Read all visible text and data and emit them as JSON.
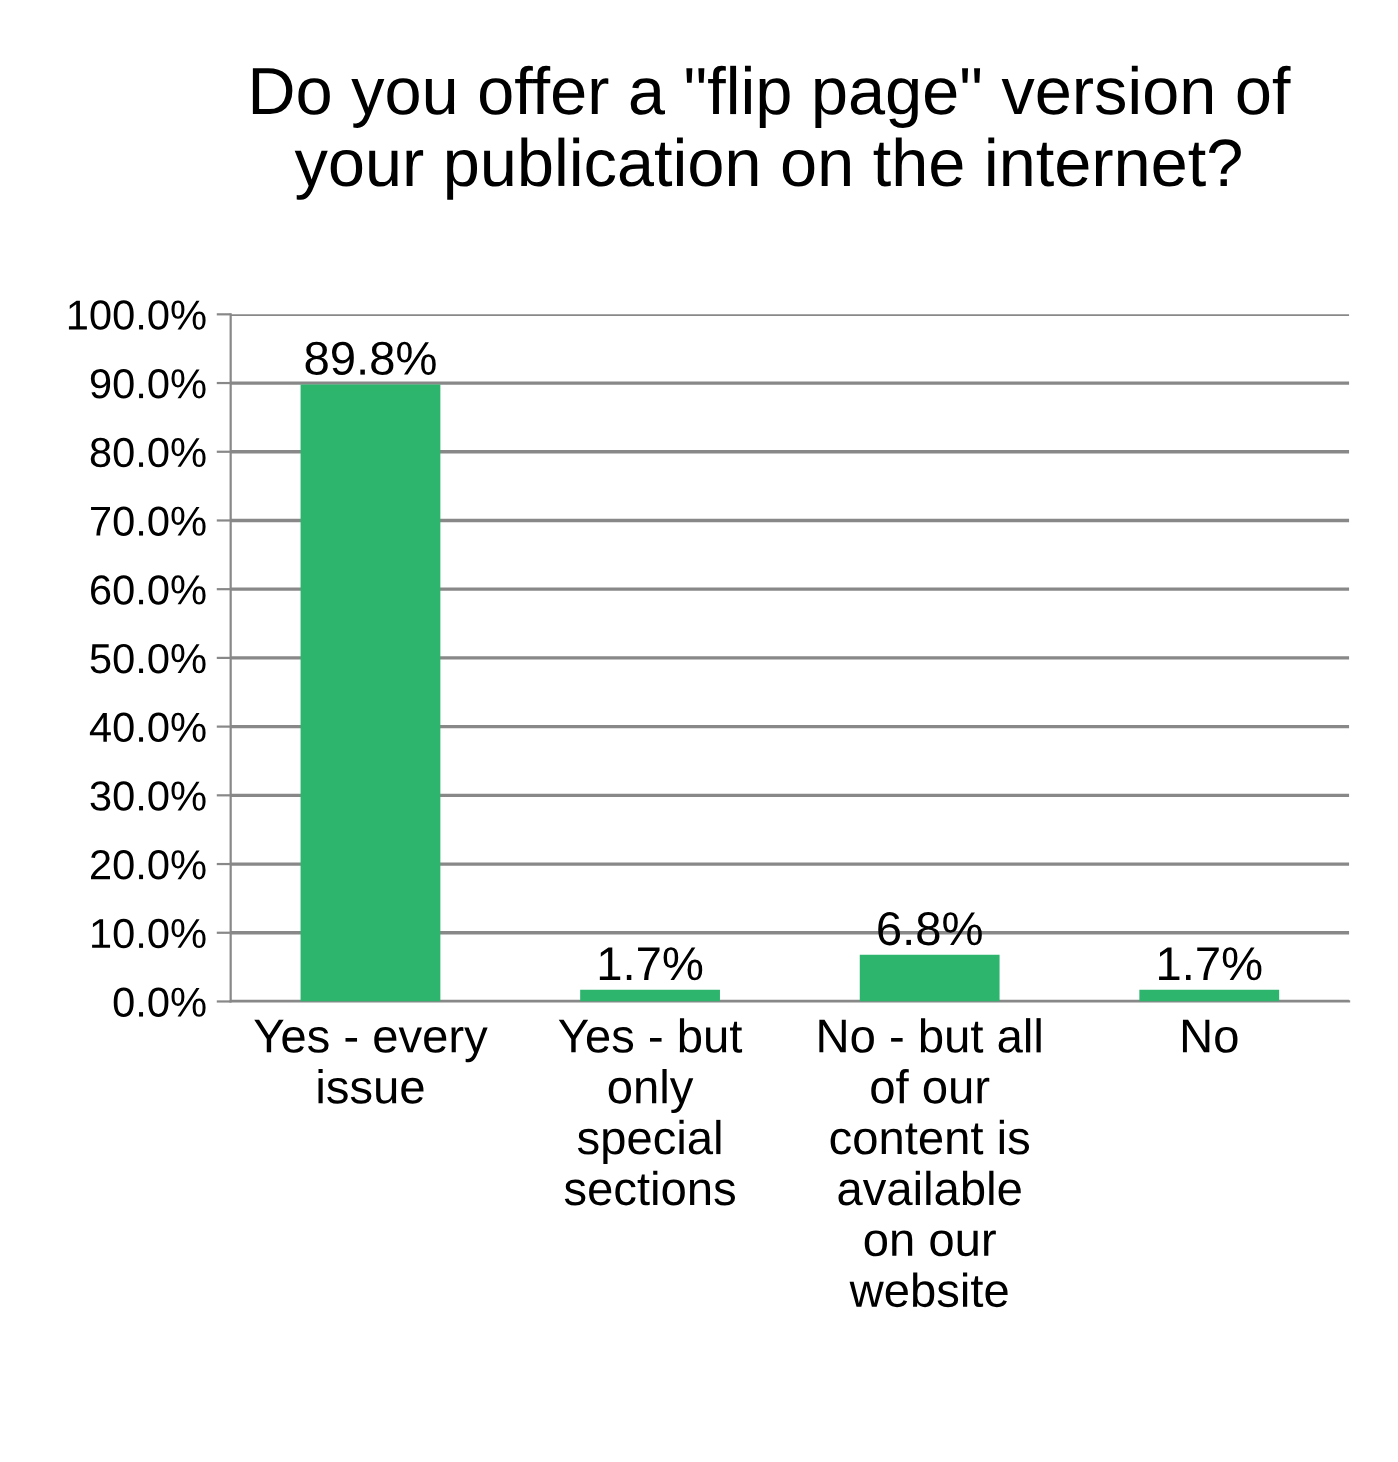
{
  "chart_data": {
    "type": "bar",
    "title": "Do you offer a \"flip page\" version of\nyour publication on the internet?",
    "categories": [
      "Yes - every\nissue",
      "Yes - but\nonly\nspecial\nsections",
      "No - but all\nof our\ncontent is\navailable\non our\nwebsite",
      "No"
    ],
    "values": [
      89.8,
      1.7,
      6.8,
      1.7
    ],
    "value_labels": [
      "89.8%",
      "1.7%",
      "6.8%",
      "1.7%"
    ],
    "color": "#2db56e",
    "ylim": [
      0,
      100
    ],
    "yticks": [
      {
        "value": 0,
        "label": "0.0%"
      },
      {
        "value": 10,
        "label": "10.0%"
      },
      {
        "value": 20,
        "label": "20.0%"
      },
      {
        "value": 30,
        "label": "30.0%"
      },
      {
        "value": 40,
        "label": "40.0%"
      },
      {
        "value": 50,
        "label": "50.0%"
      },
      {
        "value": 60,
        "label": "60.0%"
      },
      {
        "value": 70,
        "label": "70.0%"
      },
      {
        "value": 80,
        "label": "80.0%"
      },
      {
        "value": 90,
        "label": "90.0%"
      },
      {
        "value": 100,
        "label": "100.0%"
      }
    ],
    "grid": "y"
  }
}
